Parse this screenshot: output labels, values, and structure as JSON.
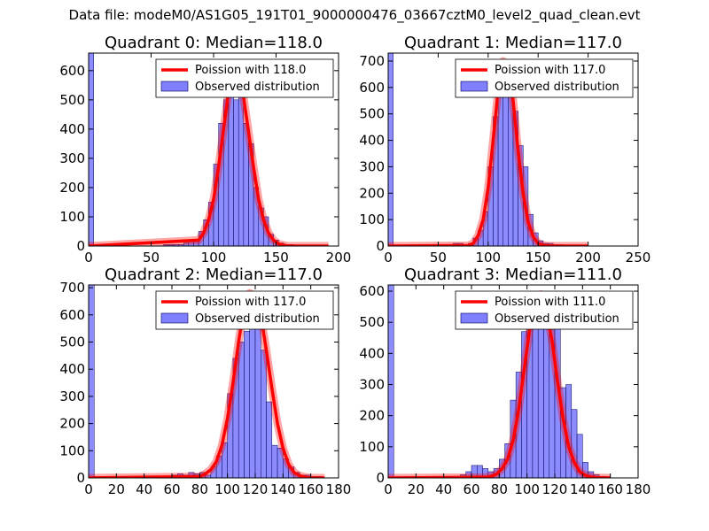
{
  "figure_title": "Data file: modeM0/AS1G05_191T01_9000000476_03667cztM0_level2_quad_clean.evt",
  "colors": {
    "poisson": "#ff0000",
    "observed_fill": "#7f7fff",
    "observed_edge": "#00005a",
    "frame": "#000000"
  },
  "chart_data": [
    {
      "type": "bar",
      "title": "Quadrant 0: Median=118.0",
      "xlim": [
        0,
        200
      ],
      "ylim": [
        0,
        660
      ],
      "xticks": [
        0,
        50,
        100,
        150,
        200
      ],
      "yticks": [
        0,
        100,
        200,
        300,
        400,
        500,
        600
      ],
      "bin_width": 4,
      "legend": {
        "placement": "top-right",
        "entries": [
          "Poission with 118.0",
          "Observed distribution"
        ]
      },
      "observed": {
        "name": "Observed distribution",
        "x": [
          0,
          60,
          64,
          68,
          72,
          76,
          80,
          84,
          88,
          92,
          96,
          100,
          104,
          108,
          112,
          116,
          120,
          124,
          128,
          132,
          136,
          140,
          144,
          148,
          152,
          156,
          160
        ],
        "values": [
          660,
          5,
          5,
          5,
          5,
          10,
          15,
          20,
          50,
          90,
          150,
          280,
          420,
          500,
          600,
          500,
          530,
          420,
          350,
          200,
          130,
          100,
          40,
          20,
          10,
          5,
          5
        ]
      },
      "poisson": {
        "name": "Poission with 118.0",
        "mean": 118.0,
        "x": [
          0,
          88,
          92,
          96,
          100,
          104,
          108,
          112,
          116,
          120,
          124,
          128,
          132,
          136,
          140,
          144,
          148,
          152,
          156,
          160,
          192
        ],
        "values": [
          0,
          20,
          45,
          90,
          160,
          270,
          400,
          530,
          600,
          590,
          510,
          390,
          270,
          160,
          90,
          45,
          20,
          8,
          3,
          0,
          0
        ]
      }
    },
    {
      "type": "bar",
      "title": "Quadrant 1: Median=117.0",
      "xlim": [
        0,
        250
      ],
      "ylim": [
        0,
        730
      ],
      "xticks": [
        0,
        50,
        100,
        150,
        200,
        250
      ],
      "yticks": [
        0,
        100,
        200,
        300,
        400,
        500,
        600,
        700
      ],
      "bin_width": 5,
      "legend": {
        "placement": "top-right",
        "entries": [
          "Poission with 117.0",
          "Observed distribution"
        ]
      },
      "observed": {
        "name": "Observed distribution",
        "x": [
          0,
          65,
          70,
          75,
          80,
          85,
          90,
          95,
          100,
          105,
          110,
          115,
          120,
          125,
          130,
          135,
          140,
          145,
          150,
          155,
          160,
          165,
          170
        ],
        "values": [
          730,
          10,
          10,
          5,
          10,
          30,
          60,
          130,
          300,
          490,
          600,
          700,
          640,
          510,
          380,
          300,
          120,
          50,
          20,
          10,
          10,
          5,
          5
        ]
      },
      "poisson": {
        "name": "Poission with 117.0",
        "mean": 117.0,
        "x": [
          0,
          80,
          85,
          90,
          95,
          100,
          105,
          110,
          115,
          120,
          125,
          130,
          135,
          140,
          145,
          150,
          155,
          160,
          170,
          200
        ],
        "values": [
          0,
          2,
          10,
          40,
          100,
          220,
          400,
          590,
          700,
          680,
          550,
          360,
          200,
          90,
          35,
          10,
          3,
          1,
          0,
          0
        ]
      }
    },
    {
      "type": "bar",
      "title": "Quadrant 2: Median=117.0",
      "xlim": [
        0,
        180
      ],
      "ylim": [
        0,
        710
      ],
      "xticks": [
        0,
        20,
        40,
        60,
        80,
        100,
        120,
        140,
        160,
        180
      ],
      "yticks": [
        0,
        100,
        200,
        300,
        400,
        500,
        600,
        700
      ],
      "bin_width": 4,
      "legend": {
        "placement": "top-right",
        "entries": [
          "Poission with 117.0",
          "Observed distribution"
        ]
      },
      "observed": {
        "name": "Observed distribution",
        "x": [
          0,
          48,
          56,
          60,
          64,
          68,
          72,
          76,
          80,
          84,
          88,
          92,
          96,
          100,
          104,
          108,
          112,
          116,
          120,
          124,
          128,
          132,
          136,
          140,
          144,
          148,
          152,
          156,
          160,
          164
        ],
        "values": [
          710,
          5,
          5,
          10,
          15,
          10,
          20,
          15,
          20,
          10,
          40,
          80,
          130,
          310,
          440,
          500,
          540,
          660,
          550,
          470,
          280,
          120,
          110,
          70,
          40,
          20,
          10,
          10,
          5,
          5
        ]
      },
      "poisson": {
        "name": "Poission with 117.0",
        "mean": 117.0,
        "x": [
          0,
          80,
          84,
          88,
          92,
          96,
          100,
          104,
          108,
          112,
          116,
          120,
          124,
          128,
          132,
          136,
          140,
          144,
          148,
          152,
          156,
          160,
          170
        ],
        "values": [
          0,
          5,
          15,
          30,
          60,
          120,
          220,
          350,
          500,
          630,
          680,
          670,
          600,
          470,
          330,
          200,
          110,
          50,
          20,
          8,
          3,
          0,
          0
        ]
      }
    },
    {
      "type": "bar",
      "title": "Quadrant 3: Median=111.0",
      "xlim": [
        0,
        180
      ],
      "ylim": [
        0,
        620
      ],
      "xticks": [
        0,
        20,
        40,
        60,
        80,
        100,
        120,
        140,
        160,
        180
      ],
      "yticks": [
        0,
        100,
        200,
        300,
        400,
        500,
        600
      ],
      "bin_width": 4,
      "legend": {
        "placement": "top-right",
        "entries": [
          "Poission with 111.0",
          "Observed distribution"
        ]
      },
      "observed": {
        "name": "Observed distribution",
        "x": [
          0,
          52,
          56,
          60,
          64,
          68,
          72,
          76,
          80,
          84,
          88,
          92,
          96,
          100,
          104,
          108,
          112,
          116,
          120,
          124,
          128,
          132,
          136,
          140,
          144,
          148,
          152
        ],
        "values": [
          620,
          10,
          20,
          40,
          40,
          30,
          20,
          30,
          60,
          110,
          250,
          340,
          470,
          510,
          500,
          520,
          570,
          560,
          510,
          290,
          300,
          220,
          140,
          50,
          20,
          10,
          5
        ]
      },
      "poisson": {
        "name": "Poission with 111.0",
        "mean": 111.0,
        "x": [
          0,
          70,
          74,
          78,
          82,
          86,
          90,
          94,
          98,
          102,
          106,
          110,
          114,
          118,
          122,
          126,
          130,
          134,
          138,
          142,
          146,
          150,
          160
        ],
        "values": [
          0,
          2,
          5,
          12,
          30,
          60,
          120,
          220,
          350,
          480,
          570,
          590,
          540,
          440,
          310,
          190,
          100,
          50,
          20,
          8,
          3,
          1,
          0
        ]
      }
    }
  ]
}
